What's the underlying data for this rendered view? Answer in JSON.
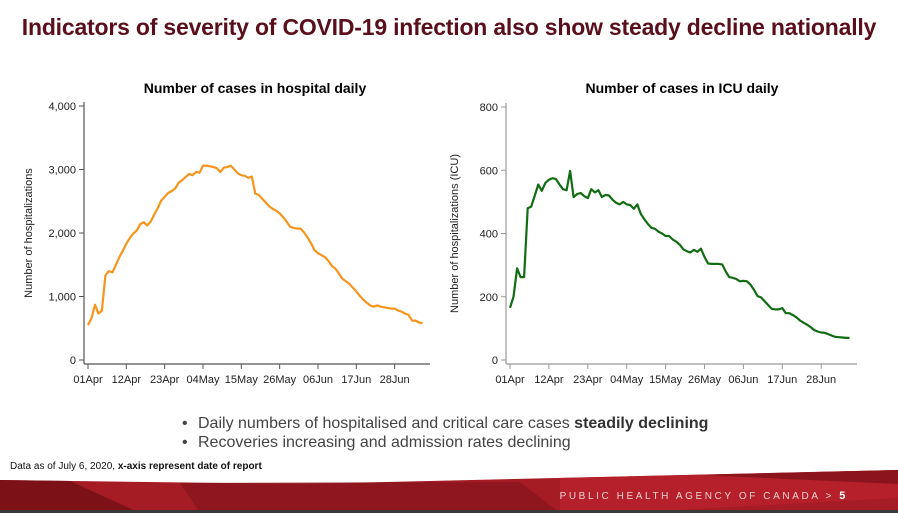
{
  "slide": {
    "title": "Indicators of severity of COVID-19 infection also show steady decline nationally",
    "bullets": [
      {
        "text": "Daily numbers of hospitalised and critical care cases ",
        "bold": "steadily declining"
      },
      {
        "text": "Recoveries increasing and admission rates declining",
        "bold": ""
      }
    ],
    "footnote": {
      "text": "Data as of July 6, 2020, ",
      "bold": "x-axis represent date of report"
    },
    "footer": {
      "agency": "PUBLIC HEALTH AGENCY OF CANADA",
      "separator": ">",
      "page": "5"
    }
  },
  "chart_data": [
    {
      "type": "line",
      "title": "Number of cases in hospital daily",
      "xlabel": "",
      "ylabel": "Number of hospitalizations",
      "ylim": [
        0,
        4000
      ],
      "yticks": [
        0,
        1000,
        2000,
        3000,
        4000
      ],
      "ytick_labels": [
        "0",
        "1,000",
        "2,000",
        "3,000",
        "4,000"
      ],
      "xlim_days": [
        0,
        97
      ],
      "xticks_days": [
        0,
        11,
        22,
        33,
        44,
        55,
        66,
        77,
        88
      ],
      "xtick_labels": [
        "01Apr",
        "12Apr",
        "23Apr",
        "04May",
        "15May",
        "26May",
        "06Jun",
        "17Jun",
        "28Jun"
      ],
      "grid": false,
      "color": "#f7941d",
      "series": [
        {
          "name": "Hospitalized",
          "x_days_from_apr1": [
            0,
            1,
            2,
            3,
            4,
            5,
            6,
            7,
            8,
            9,
            10,
            11,
            12,
            13,
            14,
            15,
            16,
            17,
            18,
            19,
            20,
            21,
            22,
            23,
            24,
            25,
            26,
            27,
            28,
            29,
            30,
            31,
            32,
            33,
            34,
            35,
            36,
            37,
            38,
            39,
            40,
            41,
            42,
            43,
            44,
            45,
            46,
            47,
            48,
            49,
            50,
            51,
            52,
            53,
            54,
            55,
            56,
            57,
            58,
            59,
            60,
            61,
            62,
            63,
            64,
            65,
            66,
            67,
            68,
            69,
            70,
            71,
            72,
            73,
            74,
            75,
            76,
            77,
            78,
            79,
            80,
            81,
            82,
            83,
            84,
            85,
            86,
            87,
            88,
            89,
            90,
            91,
            92,
            93,
            94,
            95,
            96
          ],
          "values": [
            550,
            660,
            870,
            730,
            780,
            1330,
            1400,
            1380,
            1500,
            1620,
            1720,
            1830,
            1920,
            1990,
            2040,
            2140,
            2170,
            2120,
            2180,
            2290,
            2390,
            2510,
            2570,
            2630,
            2660,
            2700,
            2790,
            2830,
            2880,
            2930,
            2910,
            2960,
            2950,
            3060,
            3060,
            3050,
            3040,
            3020,
            2960,
            3030,
            3040,
            3060,
            3000,
            2940,
            2910,
            2900,
            2870,
            2890,
            2620,
            2600,
            2540,
            2480,
            2420,
            2380,
            2350,
            2310,
            2250,
            2180,
            2100,
            2080,
            2070,
            2070,
            2010,
            1930,
            1840,
            1730,
            1680,
            1650,
            1620,
            1560,
            1480,
            1440,
            1360,
            1280,
            1240,
            1200,
            1140,
            1080,
            1010,
            950,
            900,
            860,
            840,
            860,
            840,
            830,
            820,
            810,
            810,
            780,
            760,
            730,
            710,
            620,
            620,
            590,
            580
          ]
        }
      ]
    },
    {
      "type": "line",
      "title": "Number of cases in ICU daily",
      "xlabel": "",
      "ylabel": "Number of hospitalizations (ICU)",
      "ylim": [
        0,
        800
      ],
      "yticks": [
        0,
        200,
        400,
        600,
        800
      ],
      "ytick_labels": [
        "0",
        "200",
        "400",
        "600",
        "800"
      ],
      "xlim_days": [
        0,
        97
      ],
      "xticks_days": [
        0,
        11,
        22,
        33,
        44,
        55,
        66,
        77,
        88
      ],
      "xtick_labels": [
        "01Apr",
        "12Apr",
        "23Apr",
        "04May",
        "15May",
        "26May",
        "06Jun",
        "17Jun",
        "28Jun"
      ],
      "grid": false,
      "color": "#116c13",
      "series": [
        {
          "name": "ICU",
          "x_days_from_apr1": [
            0,
            1,
            2,
            3,
            4,
            5,
            6,
            7,
            8,
            9,
            10,
            11,
            12,
            13,
            14,
            15,
            16,
            17,
            18,
            19,
            20,
            21,
            22,
            23,
            24,
            25,
            26,
            27,
            28,
            29,
            30,
            31,
            32,
            33,
            34,
            35,
            36,
            37,
            38,
            39,
            40,
            41,
            42,
            43,
            44,
            45,
            46,
            47,
            48,
            49,
            50,
            51,
            52,
            53,
            54,
            55,
            56,
            57,
            58,
            59,
            60,
            61,
            62,
            63,
            64,
            65,
            66,
            67,
            68,
            69,
            70,
            71,
            72,
            73,
            74,
            75,
            76,
            77,
            78,
            79,
            80,
            81,
            82,
            83,
            84,
            85,
            86,
            87,
            88,
            89,
            90,
            91,
            92,
            93,
            94,
            95,
            96
          ],
          "values": [
            165,
            200,
            290,
            262,
            262,
            480,
            485,
            520,
            555,
            535,
            560,
            570,
            575,
            572,
            555,
            540,
            537,
            598,
            515,
            525,
            528,
            518,
            512,
            540,
            530,
            537,
            515,
            522,
            520,
            507,
            497,
            492,
            500,
            492,
            490,
            478,
            492,
            462,
            445,
            430,
            418,
            415,
            406,
            400,
            392,
            392,
            381,
            374,
            365,
            350,
            344,
            340,
            348,
            342,
            352,
            326,
            305,
            304,
            304,
            304,
            302,
            280,
            262,
            260,
            256,
            249,
            250,
            249,
            238,
            222,
            202,
            198,
            186,
            174,
            162,
            160,
            160,
            164,
            148,
            148,
            142,
            135,
            125,
            118,
            112,
            104,
            95,
            90,
            87,
            86,
            82,
            77,
            73,
            72,
            71,
            70,
            70
          ]
        }
      ]
    }
  ]
}
